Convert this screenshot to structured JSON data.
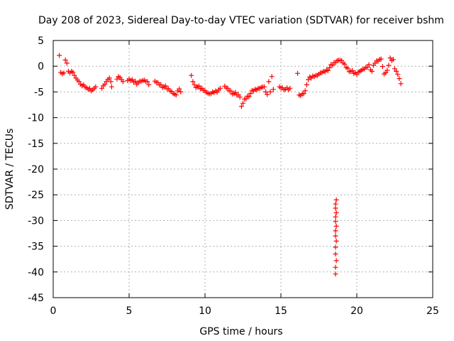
{
  "chart_data": {
    "type": "scatter",
    "title": "Day 208 of 2023, Sidereal Day-to-day VTEC variation (SDTVAR) for receiver bshm",
    "xlabel": "GPS time / hours",
    "ylabel": "SDTVAR / TECUs",
    "xlim": [
      0,
      25
    ],
    "ylim": [
      -45,
      5
    ],
    "xticks": [
      0,
      5,
      10,
      15,
      20,
      25
    ],
    "yticks": [
      5,
      0,
      -5,
      -10,
      -15,
      -20,
      -25,
      -30,
      -35,
      -40,
      -45
    ],
    "grid": true,
    "marker": "+",
    "series_color": "#ff0000",
    "segments": [
      [
        [
          0.4,
          2.1
        ],
        [
          0.5,
          -1.2
        ],
        [
          0.7,
          -1.3
        ],
        [
          0.8,
          1.2
        ],
        [
          0.9,
          0.6
        ],
        [
          1.0,
          -1.0
        ],
        [
          1.1,
          -1.3
        ],
        [
          1.2,
          -1.0
        ],
        [
          1.3,
          -1.2
        ],
        [
          1.4,
          -1.8
        ],
        [
          1.5,
          -2.3
        ],
        [
          1.6,
          -2.7
        ],
        [
          1.7,
          -3.0
        ],
        [
          1.8,
          -3.5
        ],
        [
          1.9,
          -3.8
        ],
        [
          2.0,
          -3.6
        ],
        [
          2.1,
          -4.0
        ],
        [
          2.2,
          -4.2
        ],
        [
          2.3,
          -4.5
        ],
        [
          2.4,
          -4.3
        ],
        [
          2.5,
          -4.8
        ],
        [
          2.6,
          -4.6
        ],
        [
          2.7,
          -4.3
        ],
        [
          2.8,
          -4.0
        ]
      ],
      [
        [
          3.2,
          -4.3
        ],
        [
          3.3,
          -3.8
        ],
        [
          3.4,
          -3.5
        ],
        [
          3.5,
          -3.0
        ],
        [
          3.6,
          -2.6
        ],
        [
          3.7,
          -2.3
        ],
        [
          3.8,
          -3.0
        ],
        [
          3.85,
          -4.0
        ]
      ],
      [
        [
          4.2,
          -2.5
        ],
        [
          4.3,
          -2.0
        ],
        [
          4.4,
          -2.2
        ],
        [
          4.5,
          -2.6
        ],
        [
          4.6,
          -3.0
        ]
      ],
      [
        [
          4.9,
          -2.8
        ],
        [
          5.0,
          -2.5
        ],
        [
          5.2,
          -2.6
        ],
        [
          5.4,
          -2.9
        ],
        [
          5.5,
          -3.5
        ],
        [
          5.6,
          -3.2
        ],
        [
          5.8,
          -2.9
        ],
        [
          6.0,
          -2.7
        ],
        [
          6.2,
          -3.0
        ],
        [
          6.3,
          -3.6
        ]
      ],
      [
        [
          6.7,
          -2.9
        ],
        [
          6.9,
          -3.2
        ],
        [
          7.1,
          -3.6
        ],
        [
          7.3,
          -4.0
        ],
        [
          7.5,
          -4.4
        ],
        [
          7.7,
          -4.8
        ],
        [
          7.9,
          -5.3
        ],
        [
          8.1,
          -5.6
        ],
        [
          8.2,
          -4.8
        ],
        [
          8.3,
          -4.4
        ],
        [
          8.4,
          -5.0
        ]
      ],
      [
        [
          9.1,
          -1.8
        ],
        [
          9.2,
          -3.0
        ],
        [
          9.3,
          -3.6
        ],
        [
          9.5,
          -4.0
        ],
        [
          9.7,
          -4.4
        ],
        [
          9.9,
          -4.7
        ],
        [
          10.1,
          -5.1
        ],
        [
          10.3,
          -5.4
        ],
        [
          10.5,
          -5.0
        ],
        [
          10.7,
          -4.8
        ],
        [
          10.9,
          -4.6
        ],
        [
          11.0,
          -4.3
        ]
      ],
      [
        [
          11.3,
          -3.9
        ],
        [
          11.5,
          -4.3
        ],
        [
          11.7,
          -4.8
        ],
        [
          11.9,
          -5.3
        ],
        [
          12.1,
          -5.6
        ],
        [
          12.3,
          -6.0
        ],
        [
          12.4,
          -7.8
        ],
        [
          12.5,
          -7.2
        ],
        [
          12.6,
          -6.4
        ],
        [
          12.8,
          -5.8
        ],
        [
          13.0,
          -5.3
        ],
        [
          13.2,
          -4.8
        ],
        [
          13.4,
          -4.6
        ],
        [
          13.6,
          -4.3
        ],
        [
          13.8,
          -4.0
        ]
      ],
      [
        [
          13.9,
          -4.0
        ],
        [
          14.0,
          -5.0
        ],
        [
          14.1,
          -5.5
        ],
        [
          14.2,
          -3.0
        ],
        [
          14.3,
          -5.0
        ],
        [
          14.4,
          -2.0
        ],
        [
          14.5,
          -4.5
        ]
      ],
      [
        [
          14.9,
          -4.0
        ],
        [
          15.1,
          -4.2
        ],
        [
          15.3,
          -4.5
        ],
        [
          15.4,
          -4.2
        ],
        [
          15.5,
          -4.6
        ],
        [
          15.6,
          -4.3
        ]
      ],
      [
        [
          16.1,
          -1.4
        ],
        [
          16.2,
          -5.6
        ],
        [
          16.5,
          -5.3
        ],
        [
          16.8,
          -2.6
        ],
        [
          17.0,
          -2.3
        ],
        [
          17.2,
          -2.0
        ],
        [
          17.4,
          -1.8
        ],
        [
          17.6,
          -1.3
        ],
        [
          17.8,
          -1.0
        ],
        [
          18.0,
          -0.7
        ],
        [
          18.2,
          -0.3
        ],
        [
          18.4,
          0.2
        ],
        [
          18.6,
          0.7
        ],
        [
          18.8,
          1.2
        ],
        [
          19.0,
          1.1
        ],
        [
          19.2,
          0.4
        ],
        [
          19.4,
          -0.4
        ],
        [
          19.6,
          -1.0
        ],
        [
          19.8,
          -1.4
        ],
        [
          20.0,
          -1.6
        ],
        [
          20.2,
          -1.0
        ],
        [
          20.4,
          -0.6
        ],
        [
          20.6,
          -0.2
        ],
        [
          20.8,
          0.3
        ],
        [
          21.0,
          -1.0
        ],
        [
          21.2,
          0.6
        ],
        [
          21.4,
          1.0
        ],
        [
          21.6,
          1.4
        ],
        [
          21.8,
          -1.5
        ],
        [
          22.0,
          -0.8
        ],
        [
          22.2,
          1.6
        ],
        [
          22.4,
          1.3
        ],
        [
          22.5,
          -0.5
        ],
        [
          22.6,
          -1.0
        ],
        [
          22.7,
          -1.6
        ],
        [
          22.8,
          -2.4
        ],
        [
          22.9,
          -3.4
        ]
      ]
    ],
    "outlier_series": {
      "x": 18.6,
      "values": [
        -26.0,
        -26.8,
        -27.6,
        -28.5,
        -29.3,
        -30.2,
        -31.1,
        -32.0,
        -33.0,
        -34.0,
        -35.2,
        -36.5,
        -37.8,
        -39.1,
        -40.4
      ]
    }
  }
}
